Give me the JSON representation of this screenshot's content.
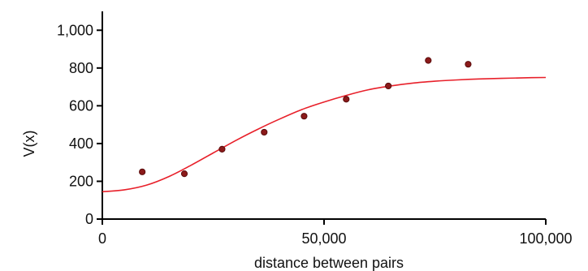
{
  "chart_data": {
    "type": "scatter",
    "xlabel": "distance between pairs",
    "ylabel": "V(x)",
    "xlim": [
      0,
      100000
    ],
    "ylim": [
      0,
      1100
    ],
    "x_ticks": [
      0,
      50000,
      100000
    ],
    "x_tick_labels": [
      "0",
      "50,000",
      "100,000"
    ],
    "y_ticks": [
      0,
      200,
      400,
      600,
      800,
      1000
    ],
    "y_tick_labels": [
      "0",
      "200",
      "400",
      "600",
      "800",
      "1,000"
    ],
    "series": [
      {
        "type": "scatter",
        "color": "#8b1a1a",
        "x": [
          9000,
          18500,
          27000,
          36500,
          45500,
          55000,
          64500,
          73500,
          82500
        ],
        "y": [
          250,
          240,
          370,
          460,
          545,
          635,
          705,
          840,
          820
        ]
      },
      {
        "type": "line",
        "color": "#e8202a",
        "x": [
          0,
          5000,
          10000,
          15000,
          20000,
          25000,
          30000,
          35000,
          40000,
          45000,
          50000,
          55000,
          60000,
          65000,
          70000,
          75000,
          80000,
          85000,
          90000,
          95000,
          100000
        ],
        "y": [
          145,
          155,
          180,
          225,
          285,
          350,
          415,
          475,
          530,
          580,
          620,
          655,
          685,
          705,
          720,
          730,
          737,
          742,
          745,
          748,
          750
        ]
      }
    ],
    "grid": false,
    "legend": "none"
  }
}
